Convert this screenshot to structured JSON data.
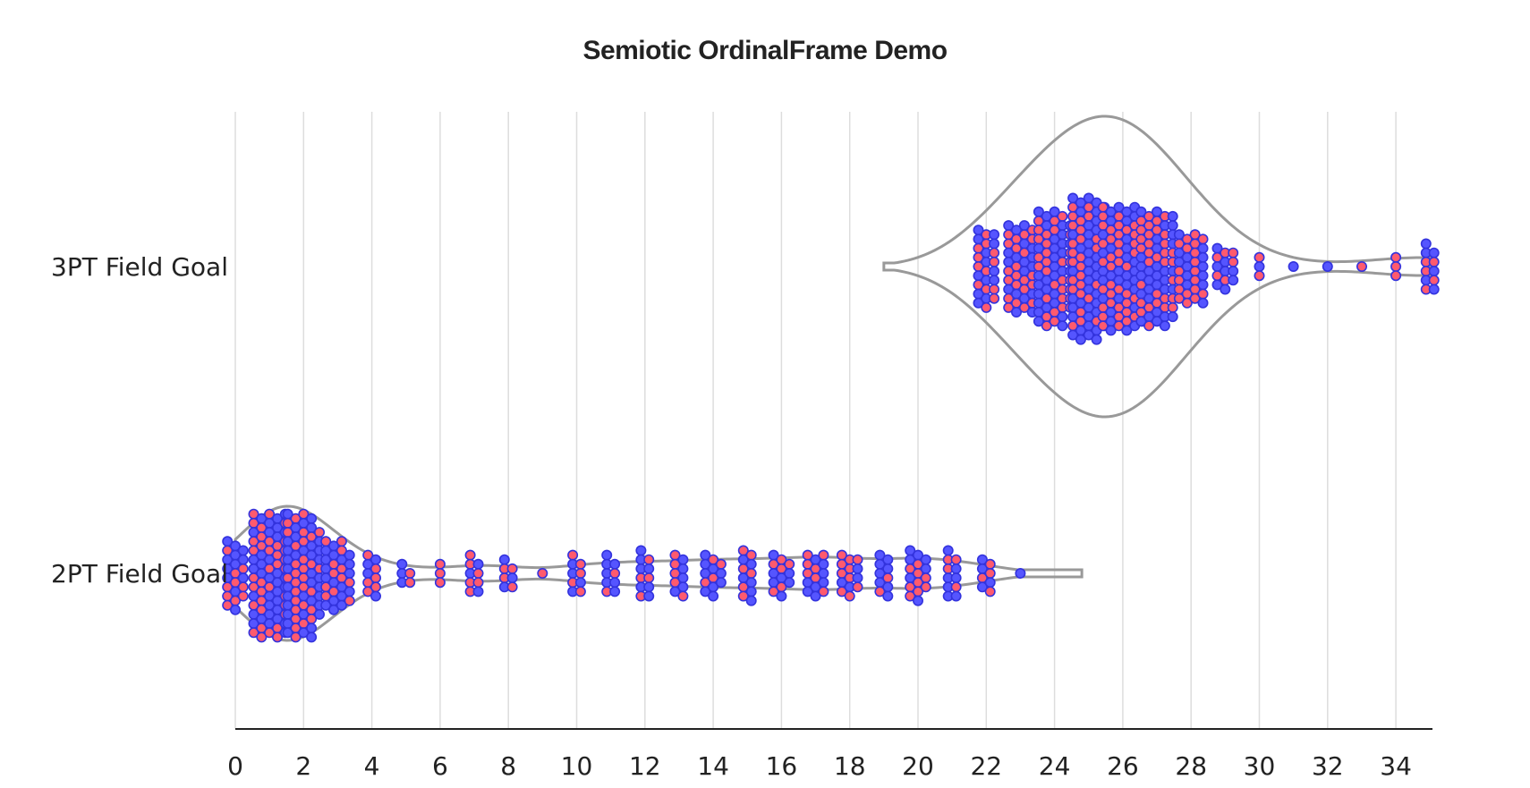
{
  "chart_data": {
    "type": "scatter",
    "subtype": "beeswarm-violin",
    "title": "Semiotic OrdinalFrame Demo",
    "categories": [
      "3PT Field Goal",
      "2PT Field Goal"
    ],
    "xlim": [
      0,
      35
    ],
    "xticks": [
      0,
      2,
      4,
      6,
      8,
      10,
      12,
      14,
      16,
      18,
      20,
      22,
      24,
      26,
      28,
      30,
      32,
      34
    ],
    "grid": true,
    "colors": {
      "made": "#ff5a6e",
      "missed": "#5555ff",
      "point_stroke": "#3333dd",
      "violin": "#999999",
      "grid": "#dddddd",
      "axis": "#222222"
    },
    "series": [
      {
        "category": "3PT Field Goal",
        "shot_counts": {
          "22": 26,
          "23": 40,
          "24": 62,
          "25": 78,
          "26": 82,
          "27": 64,
          "28": 32,
          "29": 14,
          "30": 3,
          "31": 1,
          "32": 1,
          "33": 1,
          "34": 3,
          "35": 11
        }
      },
      {
        "category": "2PT Field Goal",
        "shot_counts": {
          "0": 22,
          "1": 70,
          "2": 66,
          "3": 30,
          "4": 10,
          "5": 5,
          "6": 3,
          "7": 9,
          "8": 7,
          "9": 1,
          "10": 9,
          "11": 9,
          "12": 11,
          "13": 10,
          "14": 13,
          "15": 12,
          "16": 13,
          "17": 15,
          "18": 14,
          "19": 10,
          "20": 16,
          "21": 11,
          "22": 8,
          "23": 1
        }
      }
    ]
  }
}
